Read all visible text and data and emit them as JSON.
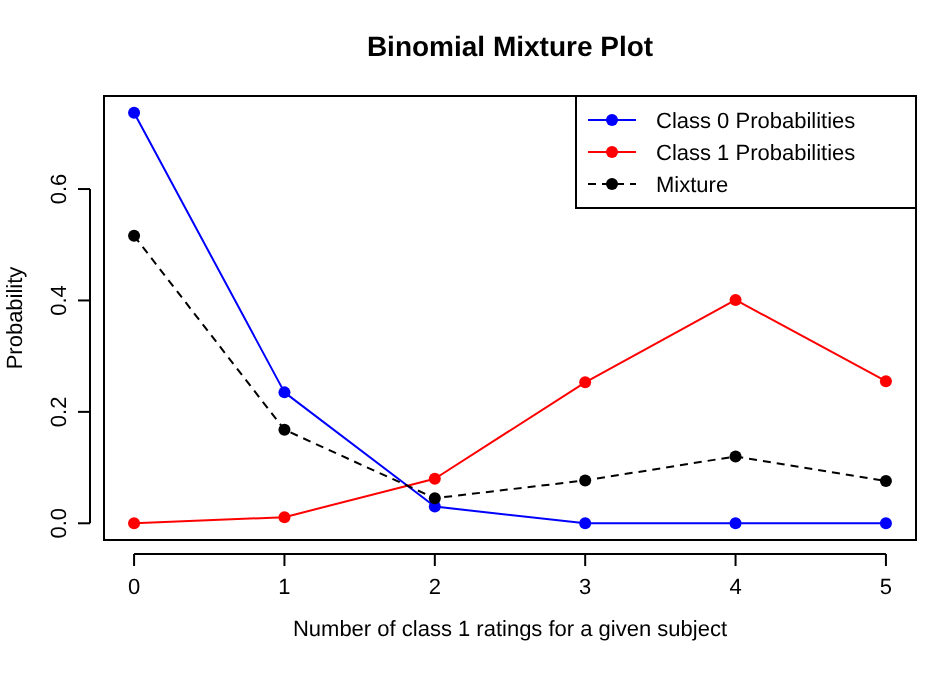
{
  "chart_data": {
    "type": "line",
    "title": "Binomial Mixture Plot",
    "xlabel": "Number of class 1 ratings for a given subject",
    "ylabel": "Probability",
    "x": [
      0,
      1,
      2,
      3,
      4,
      5
    ],
    "series": [
      {
        "name": "Class 0 Probabilities",
        "color": "#0000ff",
        "values": [
          0.737,
          0.235,
          0.03,
          0.0,
          0.0,
          0.0
        ],
        "line_style": "solid"
      },
      {
        "name": "Class 1 Probabilities",
        "color": "#ff0000",
        "values": [
          0.0,
          0.011,
          0.08,
          0.253,
          0.401,
          0.255
        ],
        "line_style": "solid"
      },
      {
        "name": "Mixture",
        "color": "#000000",
        "values": [
          0.516,
          0.168,
          0.045,
          0.077,
          0.12,
          0.076
        ],
        "line_style": "dashed"
      }
    ],
    "xlim": [
      -0.2,
      5.2
    ],
    "xticks": [
      0,
      1,
      2,
      3,
      4,
      5
    ],
    "ylim": [
      -0.03,
      0.767
    ],
    "yticks": [
      {
        "value": 0,
        "label": "0.0"
      },
      {
        "value": 0.2,
        "label": "0.2"
      },
      {
        "value": 0.4,
        "label": "0.4"
      },
      {
        "value": 0.6,
        "label": "0.6"
      }
    ],
    "marker": "circle",
    "grid": false,
    "legend": "top right"
  }
}
